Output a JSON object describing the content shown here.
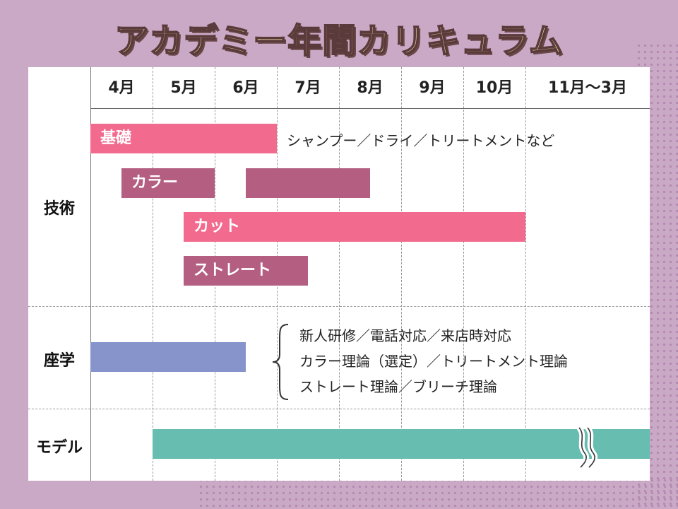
{
  "title": "アカデミー年間カリキュラム",
  "months": [
    "4月",
    "5月",
    "6月",
    "7月",
    "8月",
    "9月",
    "10月",
    "11月～3月"
  ],
  "categories": {
    "tech": "技術",
    "theory": "座学",
    "model": "モデル"
  },
  "bars": {
    "kiso": "基礎",
    "color": "カラー",
    "cut": "カット",
    "straight": "ストレート"
  },
  "notes": {
    "kiso": "シャンプー／ドライ／トリートメントなど",
    "theory_line1": "新人研修／電話対応／来店時対応",
    "theory_line2": "カラー理論（選定）／トリートメント理論",
    "theory_line3": "ストレート理論／ブリーチ理論"
  },
  "colors": {
    "pink": "#f26a8d",
    "mauve": "#b45e82",
    "blue": "#8794cc",
    "teal": "#66bdb0"
  }
}
